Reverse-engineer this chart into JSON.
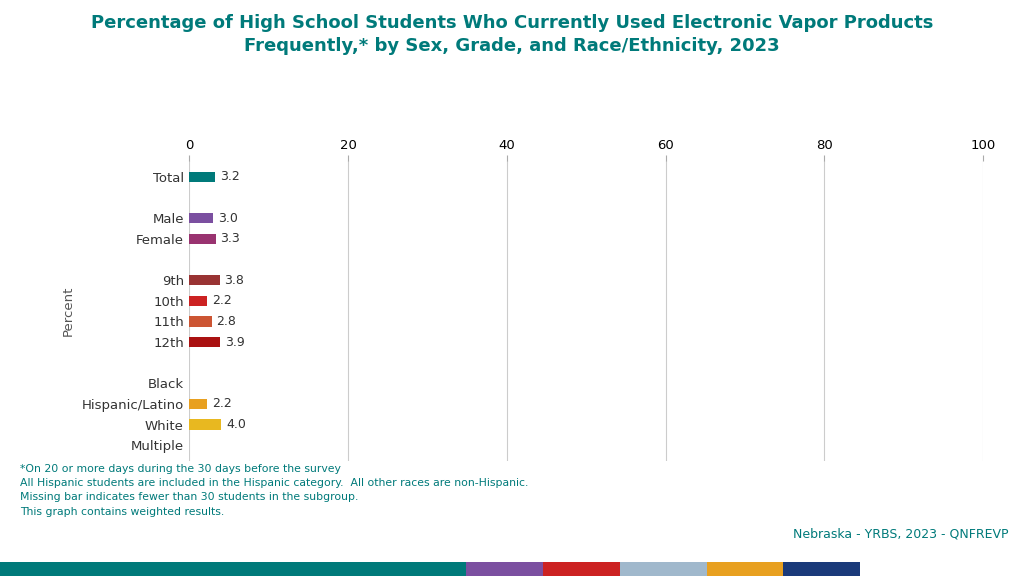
{
  "title_line1": "Percentage of High School Students Who Currently Used Electronic Vapor Products",
  "title_line2": "Frequently,* by Sex, Grade, and Race/Ethnicity, 2023",
  "title_color": "#007a7a",
  "ylabel": "Percent",
  "xlim": [
    0,
    100
  ],
  "xticks": [
    0,
    20,
    40,
    60,
    80,
    100
  ],
  "categories": [
    "Total",
    "",
    "Male",
    "Female",
    "",
    "9th",
    "10th",
    "11th",
    "12th",
    "",
    "Black",
    "Hispanic/Latino",
    "White",
    "Multiple"
  ],
  "values": [
    3.2,
    null,
    3.0,
    3.3,
    null,
    3.8,
    2.2,
    2.8,
    3.9,
    null,
    null,
    2.2,
    4.0,
    null
  ],
  "bar_colors": [
    "#007a7a",
    null,
    "#7B4FA0",
    "#993370",
    null,
    "#993333",
    "#CC2222",
    "#CC5533",
    "#AA1111",
    null,
    null,
    "#E8A020",
    "#E8B820",
    null
  ],
  "value_labels": [
    "3.2",
    null,
    "3.0",
    "3.3",
    null,
    "3.8",
    "2.2",
    "2.8",
    "3.9",
    null,
    null,
    "2.2",
    "4.0",
    null
  ],
  "footnote_lines": [
    "*On 20 or more days during the 30 days before the survey",
    "All Hispanic students are included in the Hispanic category.  All other races are non-Hispanic.",
    "Missing bar indicates fewer than 30 students in the subgroup.",
    "This graph contains weighted results."
  ],
  "footnote_color": "#007a7a",
  "source_text": "Nebraska - YRBS, 2023 - QNFREVP",
  "source_color": "#007a7a",
  "background_color": "#ffffff",
  "bar_height": 0.5,
  "footer_bar_colors": [
    "#007a7a",
    "#7B4FA0",
    "#CC2222",
    "#a0b8cc",
    "#E8A020",
    "#1a3a7a"
  ],
  "footer_bar_widths": [
    0.455,
    0.075,
    0.075,
    0.085,
    0.075,
    0.075
  ]
}
